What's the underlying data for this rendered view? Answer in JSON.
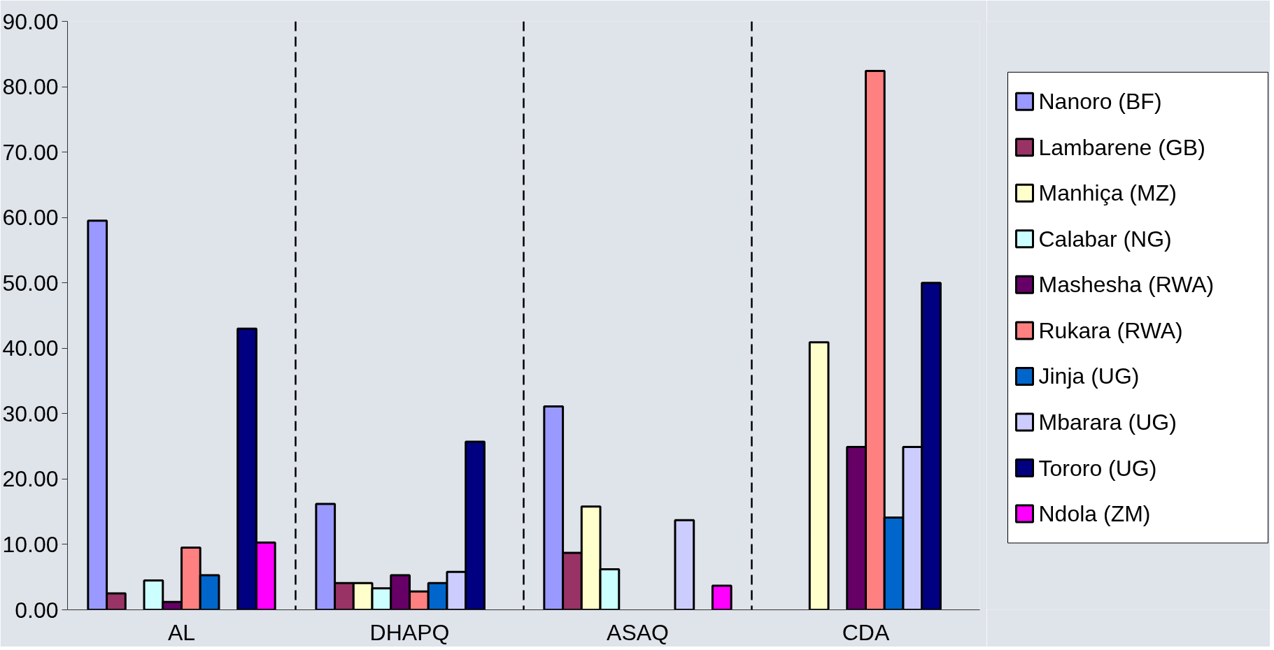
{
  "chart_data": {
    "type": "bar",
    "categories": [
      "AL",
      "DHAPQ",
      "ASAQ",
      "CDA"
    ],
    "series": [
      {
        "name": "Nanoro (BF)",
        "color": "#9999ff",
        "values": [
          59.5,
          16.2,
          31.1,
          null
        ]
      },
      {
        "name": "Lambarene (GB)",
        "color": "#993366",
        "values": [
          2.5,
          4.1,
          8.7,
          null
        ]
      },
      {
        "name": "Manhiça (MZ)",
        "color": "#ffffcc",
        "values": [
          null,
          4.1,
          15.8,
          40.9
        ]
      },
      {
        "name": "Calabar (NG)",
        "color": "#ccffff",
        "values": [
          4.5,
          3.3,
          6.2,
          null
        ]
      },
      {
        "name": "Mashesha (RWA)",
        "color": "#660066",
        "values": [
          1.2,
          5.3,
          null,
          24.9
        ]
      },
      {
        "name": "Rukara (RWA)",
        "color": "#ff8080",
        "values": [
          9.5,
          2.8,
          null,
          82.4
        ]
      },
      {
        "name": "Jinja (UG)",
        "color": "#0066cc",
        "values": [
          5.3,
          4.1,
          null,
          14.1
        ]
      },
      {
        "name": "Mbarara (UG)",
        "color": "#ccccff",
        "values": [
          null,
          5.8,
          13.7,
          24.9
        ]
      },
      {
        "name": "Tororo (UG)",
        "color": "#000080",
        "values": [
          43.0,
          25.7,
          null,
          50.0
        ]
      },
      {
        "name": "Ndola (ZM)",
        "color": "#ff00ff",
        "values": [
          10.3,
          null,
          3.7,
          null
        ]
      }
    ],
    "ylim": [
      0,
      90
    ],
    "yticks": [
      {
        "value": 0,
        "label": "0.00"
      },
      {
        "value": 10,
        "label": "10.00"
      },
      {
        "value": 20,
        "label": "20.00"
      },
      {
        "value": 30,
        "label": "30.00"
      },
      {
        "value": 40,
        "label": "40.00"
      },
      {
        "value": 50,
        "label": "50.00"
      },
      {
        "value": 60,
        "label": "60.00"
      },
      {
        "value": 70,
        "label": "70.00"
      },
      {
        "value": 80,
        "label": "80.00"
      },
      {
        "value": 90,
        "label": "90.00"
      }
    ],
    "grid": false,
    "legend": "right"
  }
}
